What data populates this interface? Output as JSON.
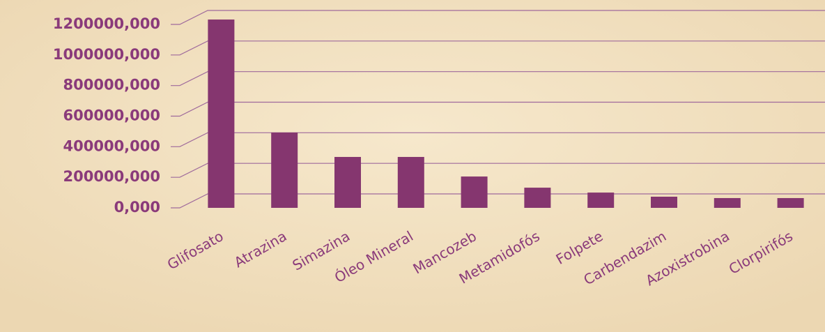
{
  "chart_data": {
    "type": "bar",
    "categories": [
      "Glifosato",
      "Atrazina",
      "Simazina",
      "Óleo Mineral",
      "Mancozeb",
      "Metamidofós",
      "Folpete",
      "Carbendazim",
      "Azoxistrobina",
      "Clorpirifós"
    ],
    "values": [
      1232000,
      493000,
      333000,
      333000,
      205000,
      132000,
      100000,
      73000,
      64000,
      64000
    ],
    "color": "#85366f",
    "ylim": [
      0,
      1200000
    ],
    "yticks": [
      {
        "value": 0,
        "label": "0,000"
      },
      {
        "value": 200000,
        "label": "200000,000"
      },
      {
        "value": 400000,
        "label": "400000,000"
      },
      {
        "value": 600000,
        "label": "600000,000"
      },
      {
        "value": 800000,
        "label": "800000,000"
      },
      {
        "value": 1000000,
        "label": "1000000,000"
      },
      {
        "value": 1200000,
        "label": "1200000,000"
      }
    ],
    "grid": true
  }
}
